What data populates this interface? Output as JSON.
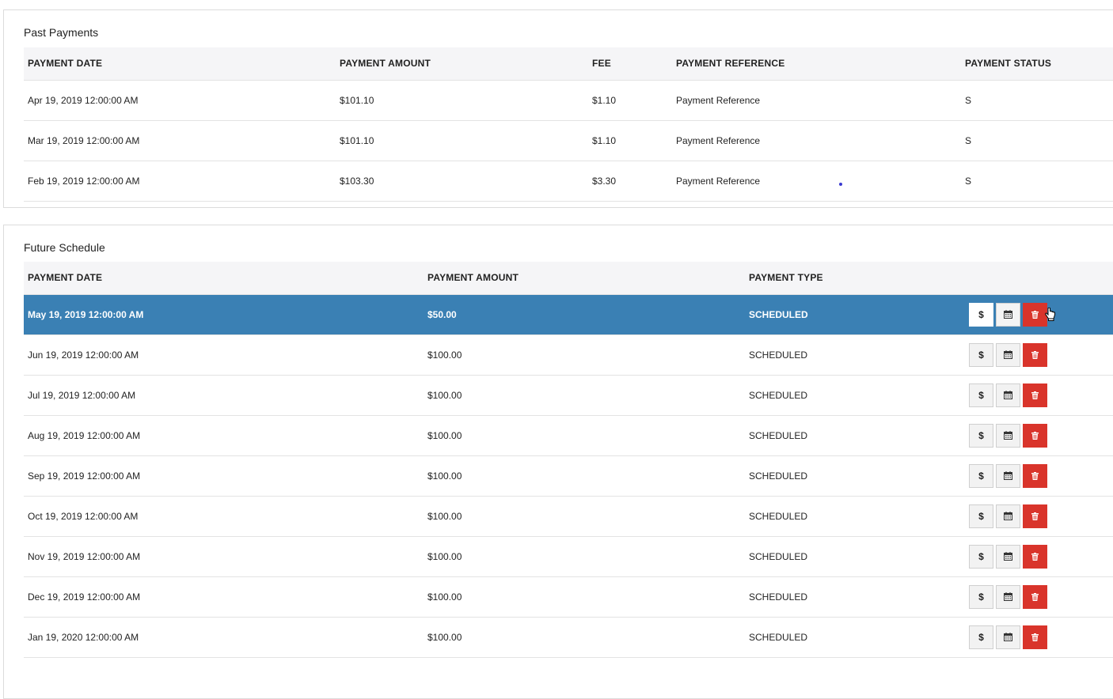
{
  "past": {
    "title": "Past Payments",
    "headers": [
      "PAYMENT DATE",
      "PAYMENT AMOUNT",
      "FEE",
      "PAYMENT REFERENCE",
      "PAYMENT STATUS"
    ],
    "rows": [
      {
        "date": "Apr 19, 2019 12:00:00 AM",
        "amount": "$101.10",
        "fee": "$1.10",
        "reference": "Payment Reference",
        "status": "S"
      },
      {
        "date": "Mar 19, 2019 12:00:00 AM",
        "amount": "$101.10",
        "fee": "$1.10",
        "reference": "Payment Reference",
        "status": "S"
      },
      {
        "date": "Feb 19, 2019 12:00:00 AM",
        "amount": "$103.30",
        "fee": "$3.30",
        "reference": "Payment Reference",
        "status": "S"
      }
    ]
  },
  "future": {
    "title": "Future Schedule",
    "headers": [
      "PAYMENT DATE",
      "PAYMENT AMOUNT",
      "PAYMENT TYPE"
    ],
    "rows": [
      {
        "date": "May 19, 2019 12:00:00 AM",
        "amount": "$50.00",
        "type": "SCHEDULED",
        "selected": true
      },
      {
        "date": "Jun 19, 2019 12:00:00 AM",
        "amount": "$100.00",
        "type": "SCHEDULED"
      },
      {
        "date": "Jul 19, 2019 12:00:00 AM",
        "amount": "$100.00",
        "type": "SCHEDULED"
      },
      {
        "date": "Aug 19, 2019 12:00:00 AM",
        "amount": "$100.00",
        "type": "SCHEDULED"
      },
      {
        "date": "Sep 19, 2019 12:00:00 AM",
        "amount": "$100.00",
        "type": "SCHEDULED"
      },
      {
        "date": "Oct 19, 2019 12:00:00 AM",
        "amount": "$100.00",
        "type": "SCHEDULED"
      },
      {
        "date": "Nov 19, 2019 12:00:00 AM",
        "amount": "$100.00",
        "type": "SCHEDULED"
      },
      {
        "date": "Dec 19, 2019 12:00:00 AM",
        "amount": "$100.00",
        "type": "SCHEDULED"
      },
      {
        "date": "Jan 19, 2020 12:00:00 AM",
        "amount": "$100.00",
        "type": "SCHEDULED"
      }
    ],
    "actions": {
      "pay_label": "$",
      "pay_icon": "dollar-icon",
      "reschedule_icon": "calendar-icon",
      "delete_icon": "trash-icon"
    }
  },
  "colors": {
    "selected_row": "#3a80b4",
    "delete_button": "#d9342b",
    "header_bg": "#f5f5f7"
  }
}
